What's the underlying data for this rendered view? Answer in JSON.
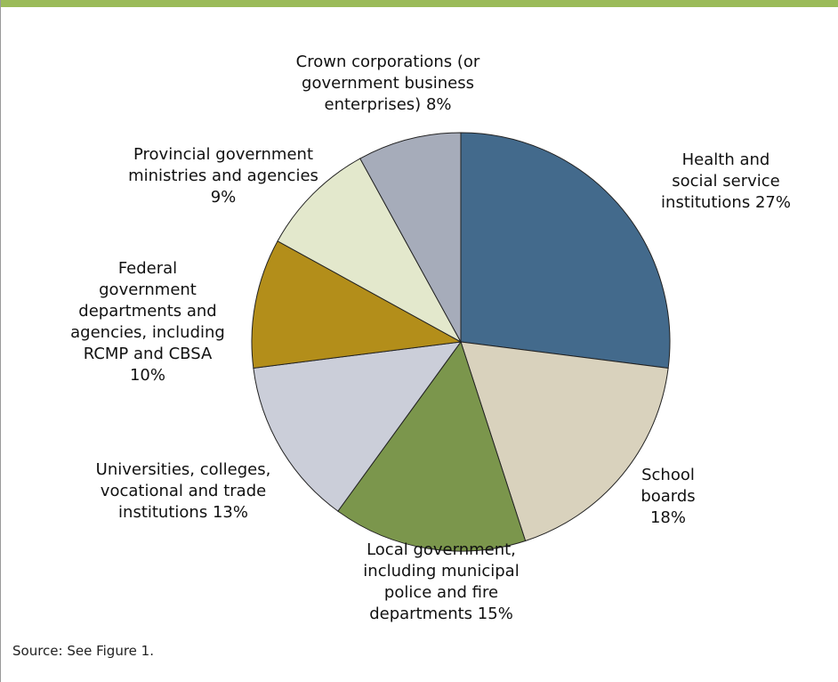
{
  "chart_data": {
    "type": "pie",
    "categories": [
      "Health and social service institutions",
      "School boards",
      "Local government, including municipal police and fire departments",
      "Universities, colleges, vocational and trade institutions",
      "Federal government departments and agencies, including RCMP and CBSA",
      "Provincial government ministries and agencies",
      "Crown corporations (or government business enterprises)"
    ],
    "values": [
      27,
      18,
      15,
      13,
      10,
      9,
      8
    ],
    "value_labels": [
      "27%",
      "18%",
      "15%",
      "13%",
      "10%",
      "9%",
      "8%"
    ],
    "colors": [
      "#436a8c",
      "#d9d2bd",
      "#7b964c",
      "#cbced9",
      "#b38e1a",
      "#e3e8cc",
      "#a6acba"
    ],
    "source": "Source: See Figure 1."
  }
}
